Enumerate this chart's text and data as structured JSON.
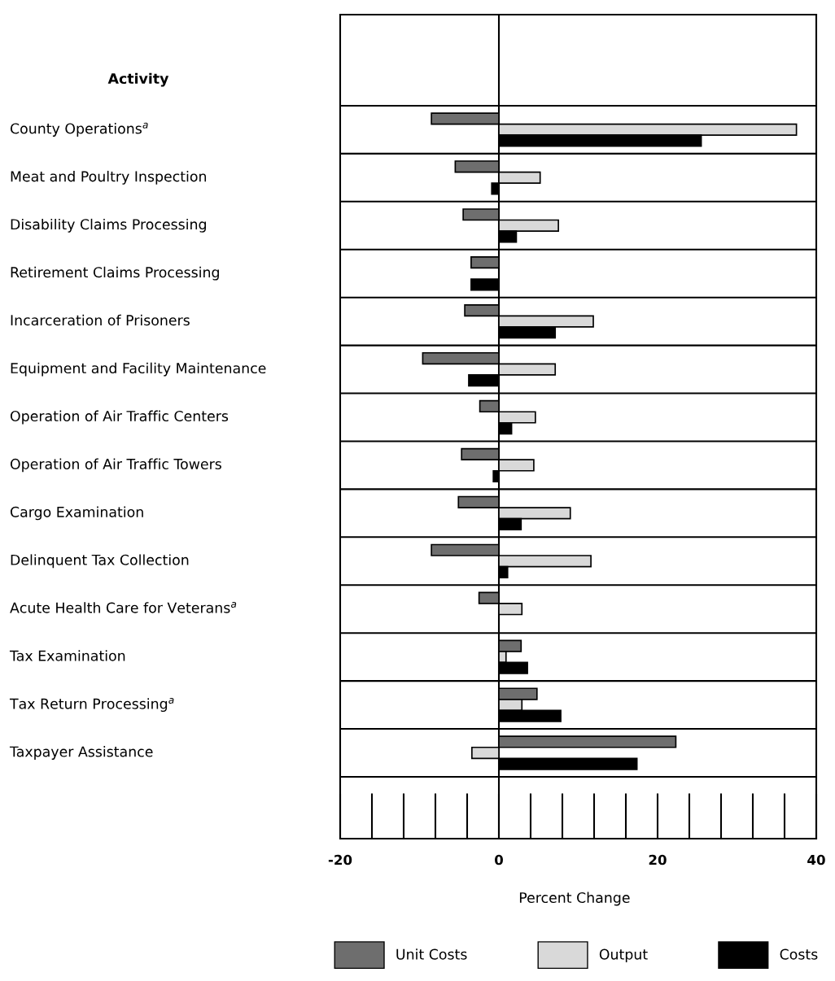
{
  "chart_data": {
    "type": "bar",
    "orientation": "horizontal",
    "xlabel": "Percent Change",
    "ylabel": "Activity",
    "categories": [
      "County Operations$^{a}$",
      "Meat and Poultry Inspection",
      "Disability Claims Processing",
      "Retirement Claims Processing",
      "Incarceration of Prisoners",
      "Equipment and Facility Maintenance",
      "Operation of Air Traffic Centers",
      "Operation of Air Traffic Towers",
      "Cargo Examination",
      "Delinquent Tax Collection",
      "Acute Health Care for Veterans$^{a}$",
      "Tax Examination",
      "Tax Return Processing$^{a}$",
      "Taxpayer Assistance"
    ],
    "series": [
      {
        "name": "Unit Costs",
        "color": "#6e6e6e",
        "values": [
          -8.5,
          -5.5,
          -4.5,
          -3.5,
          -4.3,
          -9.6,
          -2.4,
          -4.7,
          -5.1,
          -8.5,
          -2.5,
          2.8,
          4.8,
          22.3
        ]
      },
      {
        "name": "Output",
        "color": "#d9d9d9",
        "values": [
          37.5,
          5.2,
          7.5,
          null,
          11.9,
          7.1,
          4.6,
          4.4,
          9.0,
          11.6,
          2.9,
          0.9,
          2.9,
          -3.4
        ]
      },
      {
        "name": "Costs",
        "color": "#000000",
        "values": [
          25.5,
          -0.9,
          2.2,
          -3.5,
          7.1,
          -3.8,
          1.6,
          -0.7,
          2.8,
          1.1,
          null,
          3.6,
          7.8,
          17.4
        ]
      }
    ],
    "xlim": [
      -20,
      40
    ],
    "xticks": [
      -20,
      0,
      20,
      40
    ],
    "ref_lines": [
      {
        "axis": "x",
        "value": 0,
        "color": "#000000",
        "line_style": "solid"
      }
    ],
    "grid": false,
    "legend": "bottom right"
  }
}
